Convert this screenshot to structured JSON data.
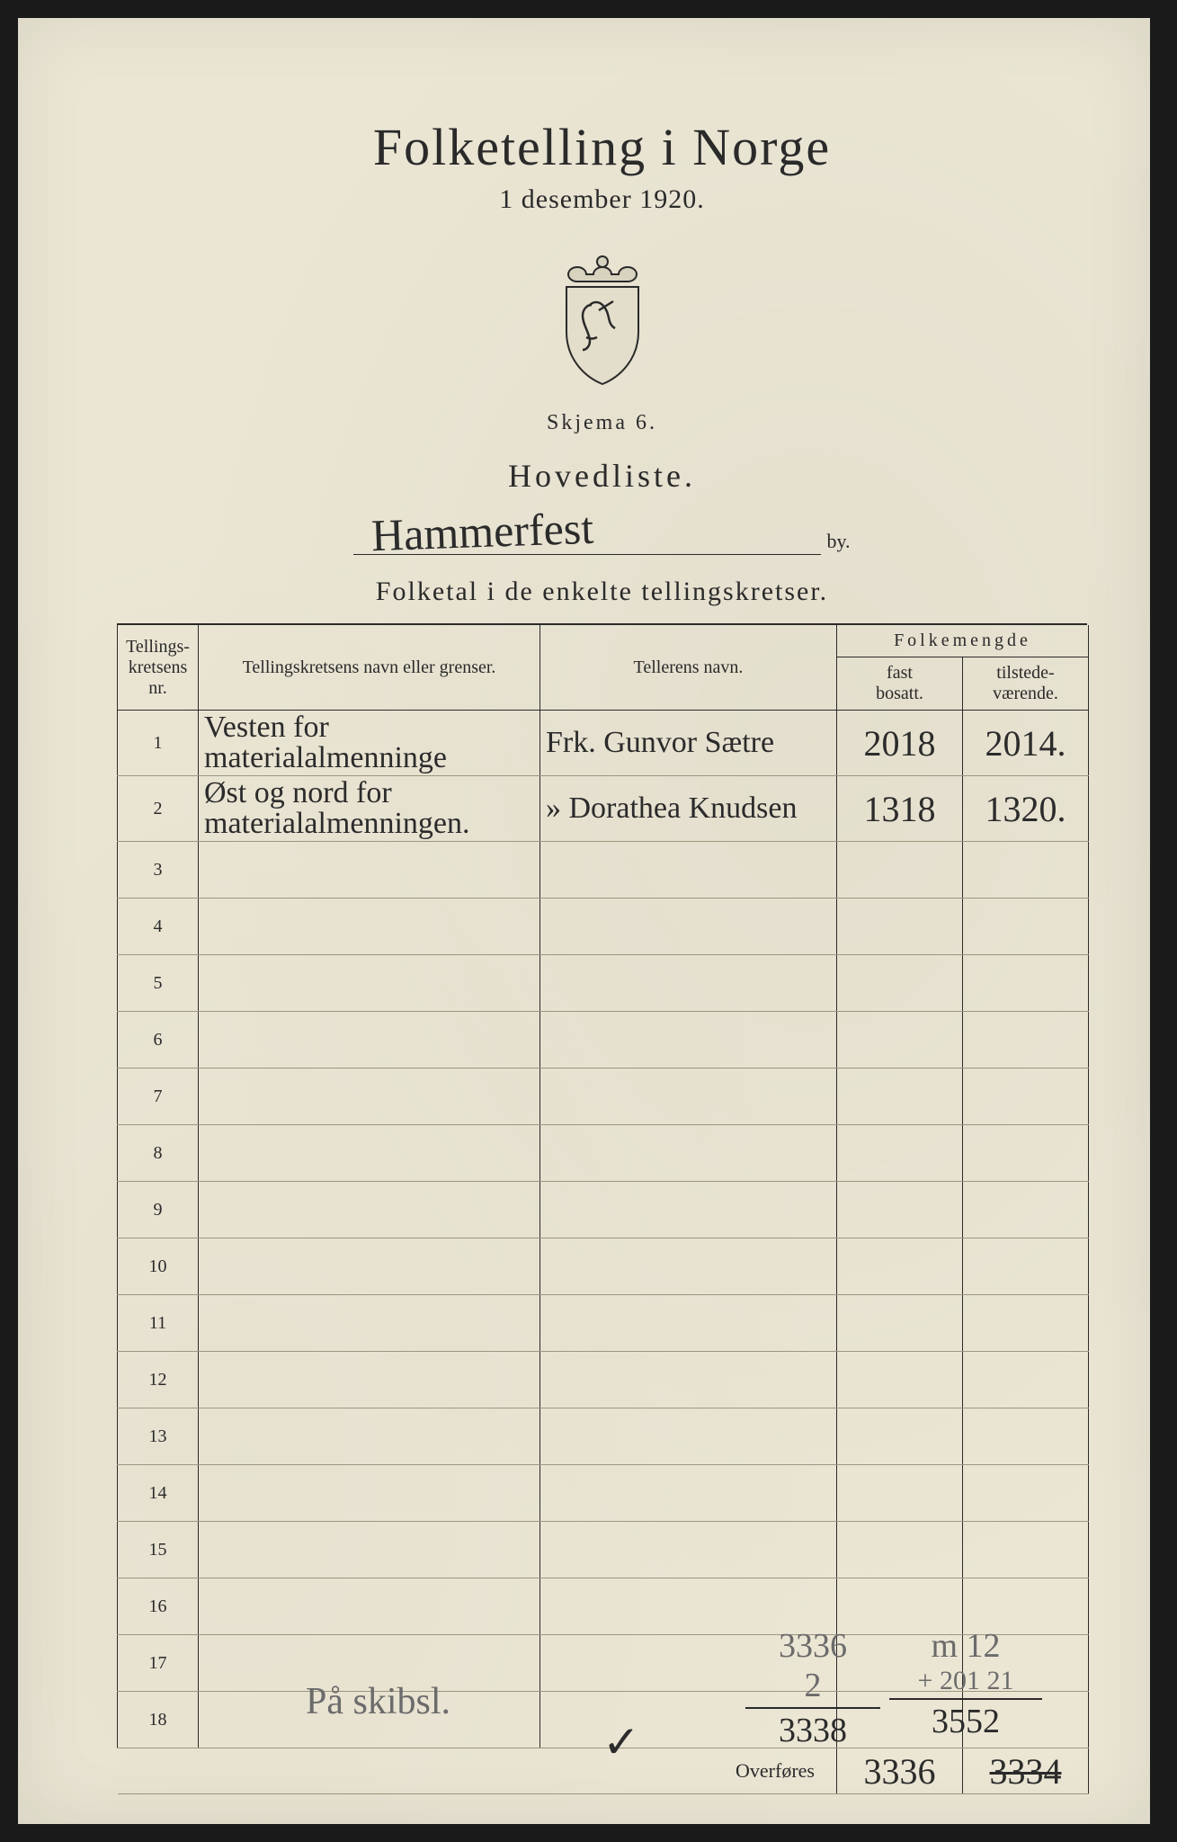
{
  "header": {
    "title": "Folketelling i Norge",
    "subtitle": "1 desember 1920.",
    "skjema": "Skjema 6.",
    "hovedliste": "Hovedliste.",
    "city_handwritten": "Hammerfest",
    "by_suffix": "by.",
    "section_heading": "Folketal i de enkelte tellingskretser."
  },
  "columns": {
    "nr_line1": "Tellings-",
    "nr_line2": "kretsens",
    "nr_line3": "nr.",
    "navn": "Tellingskretsens navn eller grenser.",
    "teller": "Tellerens navn.",
    "folkemengde": "Folkemengde",
    "fast_line1": "fast",
    "fast_line2": "bosatt.",
    "tilstede_line1": "tilstede-",
    "tilstede_line2": "værende."
  },
  "rows": [
    {
      "nr": "1",
      "navn": "Vesten for materialalmenninge",
      "teller": "Frk. Gunvor Sætre",
      "fast": "2018",
      "til": "2014."
    },
    {
      "nr": "2",
      "navn": "Øst og nord for materialalmenningen.",
      "teller": "» Dorathea Knudsen",
      "fast": "1318",
      "til": "1320."
    },
    {
      "nr": "3"
    },
    {
      "nr": "4"
    },
    {
      "nr": "5"
    },
    {
      "nr": "6"
    },
    {
      "nr": "7"
    },
    {
      "nr": "8"
    },
    {
      "nr": "9"
    },
    {
      "nr": "10"
    },
    {
      "nr": "11"
    },
    {
      "nr": "12"
    },
    {
      "nr": "13"
    },
    {
      "nr": "14"
    },
    {
      "nr": "15"
    },
    {
      "nr": "16"
    },
    {
      "nr": "17"
    },
    {
      "nr": "18"
    }
  ],
  "overfores": {
    "label": "Overføres",
    "fast": "3336",
    "til": "3334"
  },
  "footer": {
    "note": "På skibsl.",
    "col_fast": {
      "l1": "3336",
      "l2": "2",
      "sum": "3338"
    },
    "col_til": {
      "l1": "m 12",
      "l2": "+ 201   21",
      "sum": "3552"
    }
  },
  "colors": {
    "paper": "#ebe6d4",
    "ink": "#2a2a2a",
    "pencil": "#6b6b6b",
    "rule_light": "#9c967f"
  }
}
